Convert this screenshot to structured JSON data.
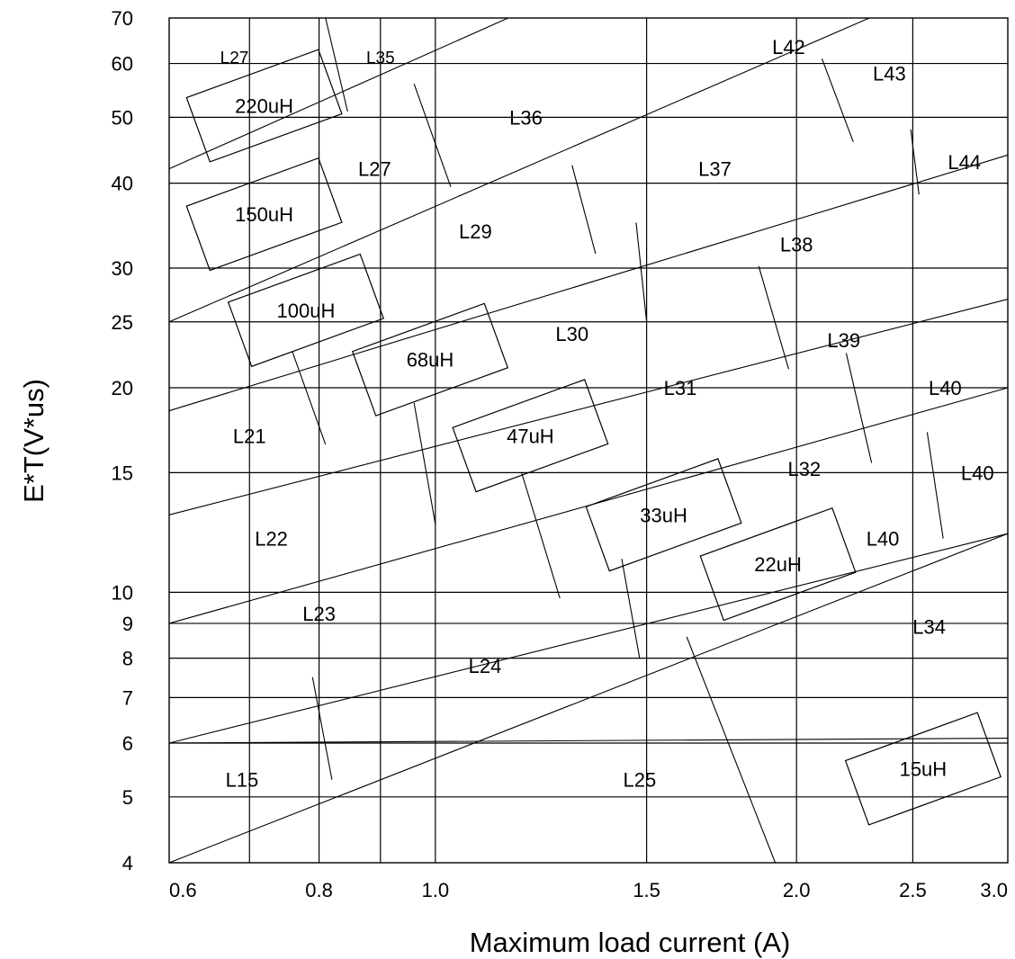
{
  "chart_data": {
    "type": "inductor_selector_chart",
    "title": "",
    "xlabel": "Maximum load current (A)",
    "ylabel": "E*T(V*us)",
    "x_scale": "log",
    "y_scale": "log",
    "xlim": [
      0.6,
      3.0
    ],
    "ylim": [
      4,
      70
    ],
    "x_ticks": [
      {
        "value": 0.6,
        "label": "0.6"
      },
      {
        "value": 0.8,
        "label": "0.8"
      },
      {
        "value": 1.0,
        "label": "1.0"
      },
      {
        "value": 1.5,
        "label": "1.5"
      },
      {
        "value": 2.0,
        "label": "2.0"
      },
      {
        "value": 2.5,
        "label": "2.5"
      },
      {
        "value": 3.0,
        "label": "3.0"
      }
    ],
    "x_gridlines": [
      0.7,
      0.8,
      0.9,
      1.0,
      1.5,
      2.0,
      2.5
    ],
    "y_ticks": [
      {
        "value": 4,
        "label": "4"
      },
      {
        "value": 5,
        "label": "5"
      },
      {
        "value": 6,
        "label": "6"
      },
      {
        "value": 7,
        "label": "7"
      },
      {
        "value": 8,
        "label": "8"
      },
      {
        "value": 9,
        "label": "9"
      },
      {
        "value": 10,
        "label": "10"
      },
      {
        "value": 15,
        "label": "15"
      },
      {
        "value": 20,
        "label": "20"
      },
      {
        "value": 25,
        "label": "25"
      },
      {
        "value": 30,
        "label": "30"
      },
      {
        "value": 40,
        "label": "40"
      },
      {
        "value": 50,
        "label": "50"
      },
      {
        "value": 60,
        "label": "60"
      },
      {
        "value": 70,
        "label": "70"
      }
    ],
    "y_gridlines": [
      5,
      6,
      7,
      8,
      9,
      10,
      15,
      20,
      25,
      30,
      40,
      50,
      60
    ],
    "inductance_bands": [
      {
        "label": "220uH",
        "x": 0.72,
        "y": 52
      },
      {
        "label": "150uH",
        "x": 0.72,
        "y": 36
      },
      {
        "label": "100uH",
        "x": 0.78,
        "y": 26
      },
      {
        "label": "68uH",
        "x": 0.99,
        "y": 22
      },
      {
        "label": "47uH",
        "x": 1.2,
        "y": 17
      },
      {
        "label": "33uH",
        "x": 1.55,
        "y": 13
      },
      {
        "label": "22uH",
        "x": 1.93,
        "y": 11
      },
      {
        "label": "15uH",
        "x": 2.55,
        "y": 5.5
      }
    ],
    "band_boundaries": [
      {
        "from": [
          0.6,
          42
        ],
        "to": [
          1.15,
          70
        ]
      },
      {
        "from": [
          0.6,
          25
        ],
        "to": [
          2.3,
          70
        ]
      },
      {
        "from": [
          0.6,
          18.5
        ],
        "to": [
          3.0,
          44
        ]
      },
      {
        "from": [
          0.6,
          13
        ],
        "to": [
          3.0,
          27
        ]
      },
      {
        "from": [
          0.6,
          9
        ],
        "to": [
          3.0,
          20
        ]
      },
      {
        "from": [
          0.6,
          6
        ],
        "to": [
          3.0,
          12.2
        ]
      },
      {
        "from": [
          0.6,
          4
        ],
        "to": [
          3.0,
          12.2
        ]
      },
      {
        "from": [
          0.6,
          6
        ],
        "to": [
          3.0,
          6.1
        ]
      }
    ],
    "region_dividers": [
      {
        "from": [
          0.81,
          70
        ],
        "to": [
          0.845,
          51
        ]
      },
      {
        "from": [
          0.96,
          56
        ],
        "to": [
          1.03,
          39.5
        ]
      },
      {
        "from": [
          0.76,
          22.6
        ],
        "to": [
          0.81,
          16.5
        ]
      },
      {
        "from": [
          1.3,
          42.5
        ],
        "to": [
          1.36,
          31.5
        ]
      },
      {
        "from": [
          0.96,
          19
        ],
        "to": [
          1.0,
          12.6
        ]
      },
      {
        "from": [
          1.47,
          35
        ],
        "to": [
          1.5,
          25
        ]
      },
      {
        "from": [
          1.86,
          30.2
        ],
        "to": [
          1.97,
          21.3
        ]
      },
      {
        "from": [
          2.1,
          61
        ],
        "to": [
          2.23,
          46
        ]
      },
      {
        "from": [
          2.49,
          48
        ],
        "to": [
          2.53,
          38.5
        ]
      },
      {
        "from": [
          1.18,
          15
        ],
        "to": [
          1.27,
          9.8
        ]
      },
      {
        "from": [
          2.2,
          22.5
        ],
        "to": [
          2.31,
          15.5
        ]
      },
      {
        "from": [
          2.57,
          17.2
        ],
        "to": [
          2.65,
          12
        ]
      },
      {
        "from": [
          1.43,
          11.2
        ],
        "to": [
          1.48,
          8
        ]
      },
      {
        "from": [
          1.62,
          8.6
        ],
        "to": [
          1.92,
          4
        ]
      },
      {
        "from": [
          0.79,
          7.5
        ],
        "to": [
          0.82,
          5.3
        ]
      }
    ],
    "region_labels": [
      {
        "text": "L27",
        "x": 0.68,
        "y": 61.5,
        "size": "small"
      },
      {
        "text": "L35",
        "x": 0.9,
        "y": 61.5,
        "size": "small"
      },
      {
        "text": "L42",
        "x": 1.97,
        "y": 63.5
      },
      {
        "text": "L43",
        "x": 2.39,
        "y": 58
      },
      {
        "text": "L36",
        "x": 1.19,
        "y": 50
      },
      {
        "text": "L44",
        "x": 2.76,
        "y": 43
      },
      {
        "text": "L27",
        "x": 0.89,
        "y": 42
      },
      {
        "text": "L37",
        "x": 1.71,
        "y": 42
      },
      {
        "text": "L29",
        "x": 1.08,
        "y": 34
      },
      {
        "text": "L38",
        "x": 2.0,
        "y": 32.5
      },
      {
        "text": "L30",
        "x": 1.3,
        "y": 24
      },
      {
        "text": "L39",
        "x": 2.19,
        "y": 23.5
      },
      {
        "text": "L31",
        "x": 1.6,
        "y": 20
      },
      {
        "text": "L40",
        "x": 2.66,
        "y": 20
      },
      {
        "text": "L21",
        "x": 0.7,
        "y": 17
      },
      {
        "text": "L32",
        "x": 2.03,
        "y": 15.2
      },
      {
        "text": "L40",
        "x": 2.83,
        "y": 15
      },
      {
        "text": "L22",
        "x": 0.73,
        "y": 12
      },
      {
        "text": "L40",
        "x": 2.36,
        "y": 12
      },
      {
        "text": "L23",
        "x": 0.8,
        "y": 9.3
      },
      {
        "text": "L34",
        "x": 2.58,
        "y": 8.9
      },
      {
        "text": "L24",
        "x": 1.1,
        "y": 7.8
      },
      {
        "text": "L15",
        "x": 0.69,
        "y": 5.3
      },
      {
        "text": "L25",
        "x": 1.48,
        "y": 5.3
      }
    ]
  }
}
